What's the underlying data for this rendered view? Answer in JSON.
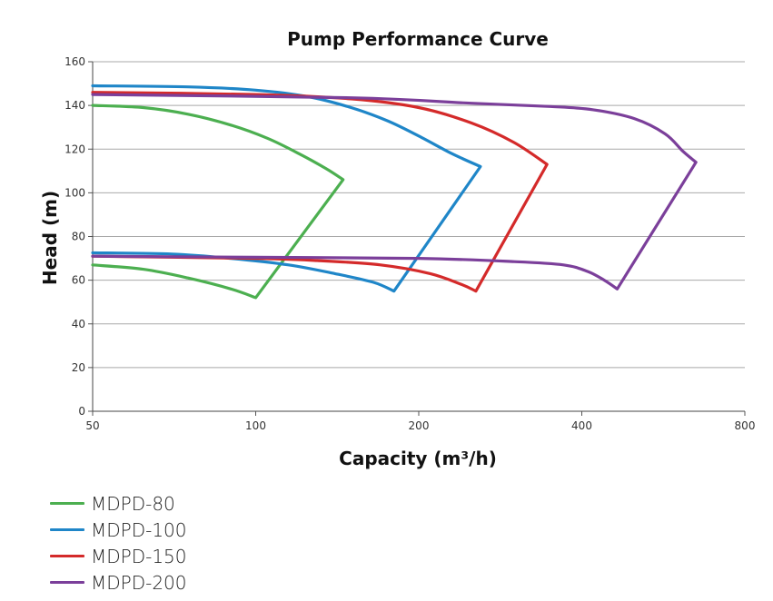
{
  "chart_data": {
    "type": "line",
    "title": "Pump Performance Curve",
    "xlabel": "Capacity (m³/h)",
    "ylabel": "Head (m)",
    "x_scale": "log",
    "xlim": [
      50,
      800
    ],
    "ylim": [
      0,
      160
    ],
    "x_ticks": [
      50,
      100,
      200,
      400,
      800
    ],
    "y_ticks": [
      0,
      20,
      40,
      60,
      80,
      100,
      120,
      140,
      160
    ],
    "grid": "horizontal",
    "legend_position": "bottom-left",
    "series": [
      {
        "name": "MDPD-80",
        "color": "#4caf50",
        "points": [
          [
            50,
            140
          ],
          [
            62,
            139
          ],
          [
            75,
            136
          ],
          [
            90,
            131
          ],
          [
            105,
            125
          ],
          [
            120,
            118
          ],
          [
            135,
            111
          ],
          [
            145,
            106
          ],
          [
            100,
            52
          ],
          [
            90,
            56
          ],
          [
            75,
            61
          ],
          [
            62,
            65
          ],
          [
            50,
            67
          ]
        ]
      },
      {
        "name": "MDPD-100",
        "color": "#1f86c8",
        "points": [
          [
            50,
            149
          ],
          [
            75,
            148.5
          ],
          [
            100,
            147
          ],
          [
            125,
            144
          ],
          [
            150,
            139
          ],
          [
            175,
            133
          ],
          [
            200,
            126
          ],
          [
            230,
            118
          ],
          [
            260,
            112
          ],
          [
            180,
            55
          ],
          [
            165,
            59
          ],
          [
            140,
            63
          ],
          [
            115,
            67
          ],
          [
            90,
            70
          ],
          [
            70,
            72
          ],
          [
            50,
            72.5
          ]
        ]
      },
      {
        "name": "MDPD-150",
        "color": "#d42a2a",
        "points": [
          [
            50,
            146
          ],
          [
            100,
            145
          ],
          [
            150,
            143
          ],
          [
            200,
            139
          ],
          [
            250,
            132
          ],
          [
            300,
            123
          ],
          [
            345,
            113
          ],
          [
            255,
            55
          ],
          [
            240,
            58
          ],
          [
            210,
            63
          ],
          [
            170,
            67
          ],
          [
            130,
            69
          ],
          [
            100,
            70
          ],
          [
            50,
            71
          ]
        ]
      },
      {
        "name": "MDPD-200",
        "color": "#7b3f9a",
        "points": [
          [
            50,
            145
          ],
          [
            150,
            143.5
          ],
          [
            250,
            141
          ],
          [
            350,
            139.5
          ],
          [
            420,
            138
          ],
          [
            500,
            134
          ],
          [
            570,
            127
          ],
          [
            615,
            119
          ],
          [
            650,
            114
          ],
          [
            465,
            56
          ],
          [
            440,
            60
          ],
          [
            410,
            64
          ],
          [
            370,
            67
          ],
          [
            300,
            68.5
          ],
          [
            200,
            70
          ],
          [
            100,
            70.5
          ],
          [
            50,
            71
          ]
        ]
      }
    ]
  }
}
